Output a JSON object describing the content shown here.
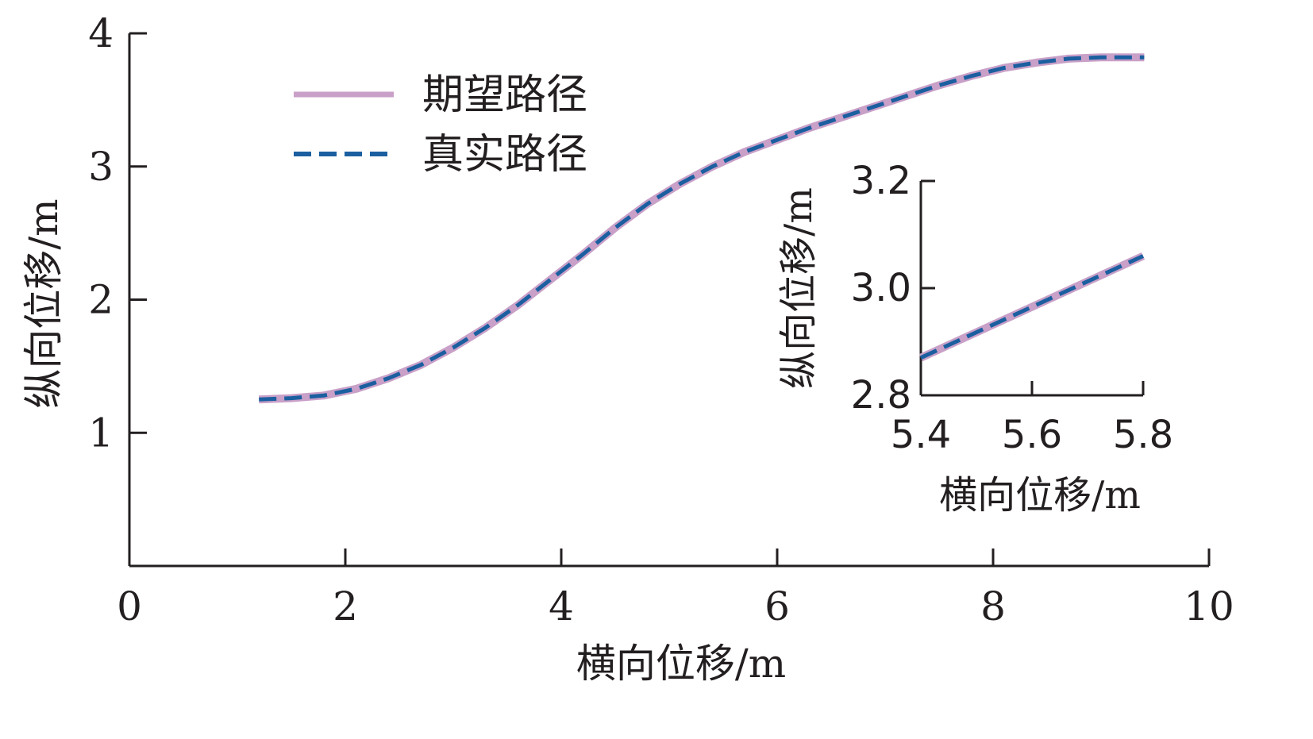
{
  "chart_data": [
    {
      "type": "line",
      "xlabel": "横向位移/m",
      "ylabel": "纵向位移/m",
      "xlim": [
        0,
        10
      ],
      "ylim": [
        0,
        4
      ],
      "xticks": [
        "0",
        "2",
        "4",
        "6",
        "8",
        "10"
      ],
      "yticks": [
        "1",
        "2",
        "3",
        "4"
      ],
      "legend_position": "top-left",
      "series": [
        {
          "name": "期望路径",
          "color": "#c9a0c8",
          "style": "solid",
          "x": [
            1.2,
            1.5,
            1.8,
            2.1,
            2.4,
            2.7,
            3.0,
            3.3,
            3.6,
            3.9,
            4.2,
            4.5,
            4.8,
            5.1,
            5.4,
            5.7,
            6.0,
            6.3,
            6.6,
            6.9,
            7.2,
            7.5,
            7.8,
            8.1,
            8.4,
            8.7,
            9.0,
            9.4
          ],
          "y": [
            1.25,
            1.26,
            1.28,
            1.33,
            1.41,
            1.51,
            1.64,
            1.79,
            1.96,
            2.15,
            2.34,
            2.54,
            2.72,
            2.87,
            3.0,
            3.11,
            3.2,
            3.29,
            3.37,
            3.45,
            3.53,
            3.61,
            3.68,
            3.74,
            3.78,
            3.81,
            3.82,
            3.82
          ]
        },
        {
          "name": "真实路径",
          "color": "#1b5fa0",
          "style": "dashed",
          "x": [
            1.2,
            1.5,
            1.8,
            2.1,
            2.4,
            2.7,
            3.0,
            3.3,
            3.6,
            3.9,
            4.2,
            4.5,
            4.8,
            5.1,
            5.4,
            5.7,
            6.0,
            6.3,
            6.6,
            6.9,
            7.2,
            7.5,
            7.8,
            8.1,
            8.4,
            8.7,
            9.0,
            9.4
          ],
          "y": [
            1.25,
            1.26,
            1.28,
            1.33,
            1.41,
            1.51,
            1.64,
            1.79,
            1.96,
            2.15,
            2.34,
            2.54,
            2.72,
            2.87,
            3.0,
            3.11,
            3.2,
            3.29,
            3.37,
            3.45,
            3.53,
            3.61,
            3.68,
            3.74,
            3.78,
            3.81,
            3.82,
            3.82
          ]
        }
      ]
    },
    {
      "type": "line",
      "xlabel": "横向位移/m",
      "ylabel": "纵向位移/m",
      "xlim": [
        5.4,
        5.8
      ],
      "ylim": [
        2.8,
        3.2
      ],
      "xticks": [
        "5.4",
        "5.6",
        "5.8"
      ],
      "yticks": [
        "2.8",
        "3.0",
        "3.2"
      ],
      "series": [
        {
          "name": "期望路径",
          "color": "#c9a0c8",
          "style": "solid",
          "x": [
            5.4,
            5.8
          ],
          "y": [
            2.87,
            3.06
          ]
        },
        {
          "name": "真实路径",
          "color": "#1b5fa0",
          "style": "dashed",
          "x": [
            5.4,
            5.8
          ],
          "y": [
            2.87,
            3.06
          ]
        }
      ]
    }
  ]
}
